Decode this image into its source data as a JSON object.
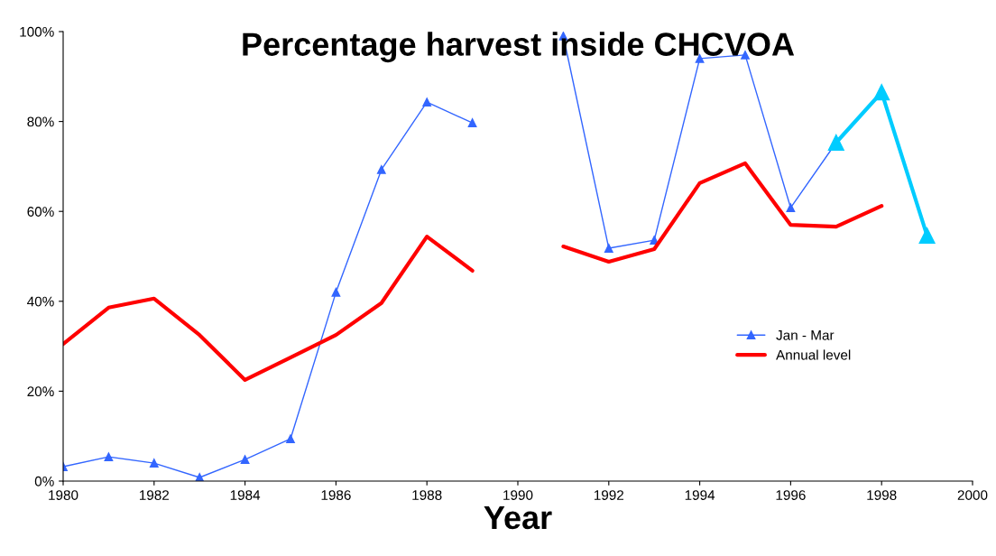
{
  "chart_data": {
    "type": "line",
    "title": "Percentage harvest inside CHCVOA",
    "xlabel": "Year",
    "x": [
      1980,
      1981,
      1982,
      1983,
      1984,
      1985,
      1986,
      1987,
      1988,
      1989,
      1990,
      1991,
      1992,
      1993,
      1994,
      1995,
      1996,
      1997,
      1998,
      1999
    ],
    "series": [
      {
        "name": "Jan - Mar",
        "color": "#3366ff",
        "marker": "triangle",
        "values": [
          3.2,
          5.4,
          4.0,
          0.8,
          4.8,
          9.4,
          42,
          69.3,
          84.3,
          79.7,
          null,
          99,
          51.8,
          53.6,
          94,
          94.8,
          60.8,
          75.3,
          null,
          null
        ]
      },
      {
        "name": "Annual level",
        "color": "#ff0000",
        "marker": "none",
        "values": [
          30.5,
          38.6,
          40.6,
          32.5,
          22.5,
          27.5,
          32.5,
          39.6,
          54.4,
          46.8,
          null,
          52.2,
          48.8,
          51.6,
          66.3,
          70.7,
          57.0,
          56.6,
          61.2,
          null
        ]
      },
      {
        "color": "#00ccff",
        "marker": "triangle",
        "values": [
          null,
          null,
          null,
          null,
          null,
          null,
          null,
          null,
          null,
          null,
          null,
          null,
          null,
          null,
          null,
          null,
          null,
          75.3,
          86.5,
          54.6
        ]
      }
    ],
    "xlim": [
      1980,
      2000
    ],
    "xticks": [
      1980,
      1982,
      1984,
      1986,
      1988,
      1990,
      1992,
      1994,
      1996,
      1998,
      2000
    ],
    "ylim": [
      0,
      100
    ],
    "yticks": [
      {
        "value": 0,
        "label": "0%"
      },
      {
        "value": 20,
        "label": "20%"
      },
      {
        "value": 40,
        "label": "40%"
      },
      {
        "value": 60,
        "label": "60%"
      },
      {
        "value": 80,
        "label": "80%"
      },
      {
        "value": 100,
        "label": "100%"
      }
    ],
    "grid": false,
    "legend": "center right"
  }
}
